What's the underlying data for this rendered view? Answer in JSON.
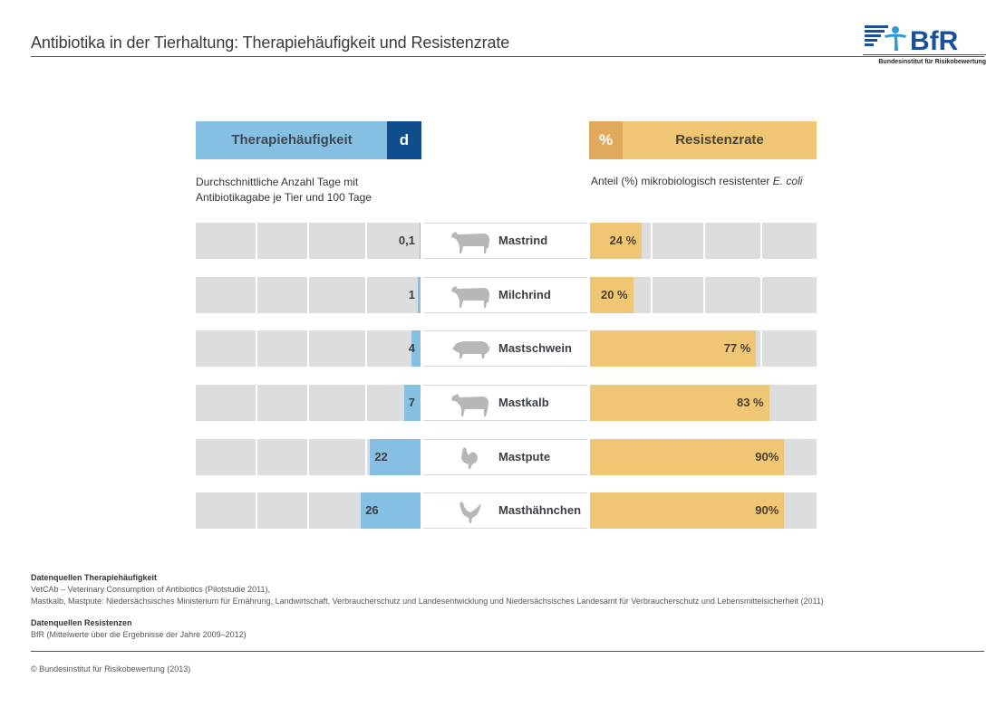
{
  "header": {
    "title": "Antibiotika in der Tierhaltung: Therapiehäufigkeit und Resistenzrate",
    "logo_text": "BfR",
    "logo_subtitle": "Bundesinstitut für Risikobewertung",
    "logo_icon": "bfr-figure-logo-icon"
  },
  "colors": {
    "therapy_bar": "#85bfe2",
    "therapy_unit": "#0f4d8c",
    "resistance_bar": "#efc774",
    "resistance_unit": "#dfaa5c",
    "track": "#dcdddf",
    "animal_icon": "#b7b7b7"
  },
  "chart_data": {
    "type": "bar",
    "title": "Antibiotika in der Tierhaltung: Therapiehäufigkeit und Resistenzrate",
    "categories": [
      "Mastrind",
      "Milchrind",
      "Mastschwein",
      "Mastkalb",
      "Mastpute",
      "Masthähnchen"
    ],
    "icons": [
      "cow-icon",
      "cow-icon",
      "pig-icon",
      "calf-icon",
      "turkey-icon",
      "chicken-icon"
    ],
    "series": [
      {
        "name": "Therapiehäufigkeit",
        "unit": "d",
        "description_line1": "Durchschnittliche Anzahl Tage mit",
        "description_line2": "Antibiotikagabe je Tier und 100 Tage",
        "values": [
          0.1,
          1,
          4,
          7,
          22,
          26
        ],
        "labels": [
          "0,1",
          "1",
          "4",
          "7",
          "22",
          "26"
        ],
        "direction": "right-to-left",
        "xlim": [
          0,
          98
        ]
      },
      {
        "name": "Resistenzrate",
        "unit": "%",
        "description": "Anteil (%) mikrobiologisch resistenter",
        "description_italic": "E. coli",
        "values": [
          24,
          20,
          77,
          83,
          90,
          90
        ],
        "labels": [
          "24 %",
          "20 %",
          "77 %",
          "83 %",
          "90%",
          "90%"
        ],
        "direction": "left-to-right",
        "xlim": [
          0,
          105
        ]
      }
    ],
    "xlabel": "",
    "ylabel": "",
    "grid": true,
    "legend": "none"
  },
  "sources": {
    "therapy_heading": "Datenquellen Therapiehäufigkeit",
    "therapy_line1": "VetCAb – Veterinary Consumption of Antibiotics (Pilotstudie 2011),",
    "therapy_line2": "Mastkalb, Mastpute: Niedersächsisches Ministerium für Ernährung, Landwirtschaft, Verbraucherschutz und Landesentwicklung und Niedersächsisches Landesamt für Verbraucherschutz und Lebensmittelsicherheit (2011)",
    "resistance_heading": "Datenquellen Resistenzen",
    "resistance_line1": "BfR (Mittelwerte über die Ergebnisse der Jahre 2009–2012)"
  },
  "footer": {
    "copyright": "© Bundesinstitut für Risikobewertung (2013)"
  }
}
